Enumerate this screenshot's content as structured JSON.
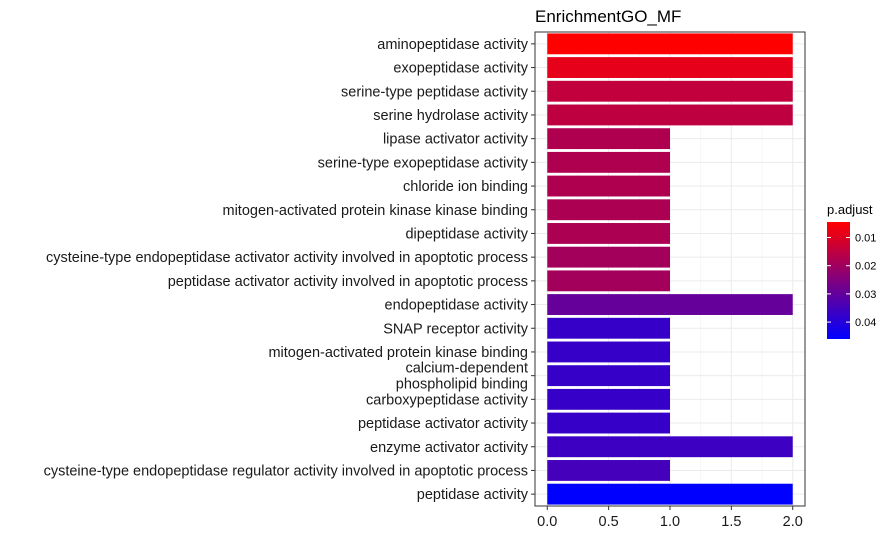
{
  "chart_data": {
    "type": "bar",
    "orientation": "horizontal",
    "title": "EnrichmentGO_MF",
    "xlabel": "",
    "ylabel": "",
    "xlim": [
      -0.1,
      2.1
    ],
    "x_ticks": [
      "0.0",
      "0.5",
      "1.0",
      "1.5",
      "2.0"
    ],
    "x_tick_values": [
      0,
      0.5,
      1.0,
      1.5,
      2.0
    ],
    "grid": true,
    "categories": [
      "aminopeptidase activity",
      "exopeptidase activity",
      "serine-type peptidase activity",
      "serine hydrolase activity",
      "lipase activator activity",
      "serine-type exopeptidase activity",
      "chloride ion binding",
      "mitogen-activated protein kinase kinase binding",
      "dipeptidase activity",
      "cysteine-type endopeptidase activator activity involved in apoptotic process",
      "peptidase activator activity involved in apoptotic process",
      "endopeptidase activity",
      "SNAP receptor activity",
      "mitogen-activated protein kinase binding",
      "calcium-dependent phospholipid binding",
      "carboxypeptidase activity",
      "peptidase activator activity",
      "enzyme activator activity",
      "cysteine-type endopeptidase regulator activity involved in apoptotic process",
      "peptidase activity"
    ],
    "category_label_lines": {
      "calcium-dependent phospholipid binding": [
        "calcium-dependent",
        "phospholipid binding"
      ]
    },
    "values": [
      2,
      2,
      2,
      2,
      1,
      1,
      1,
      1,
      1,
      1,
      1,
      2,
      1,
      1,
      1,
      1,
      1,
      2,
      1,
      2
    ],
    "p_adjust": [
      0.0045,
      0.0085,
      0.0145,
      0.015,
      0.0175,
      0.0175,
      0.0175,
      0.018,
      0.018,
      0.0195,
      0.0195,
      0.0295,
      0.037,
      0.037,
      0.037,
      0.037,
      0.037,
      0.036,
      0.035,
      0.046
    ],
    "legend": {
      "title": "p.adjust",
      "placement": "right",
      "ticks": [
        "0.01",
        "0.02",
        "0.03",
        "0.04"
      ],
      "tick_values": [
        0.01,
        0.02,
        0.03,
        0.04
      ],
      "range": [
        0.0045,
        0.046
      ],
      "color_low": "#ff0000",
      "color_high": "#0000ff"
    }
  }
}
